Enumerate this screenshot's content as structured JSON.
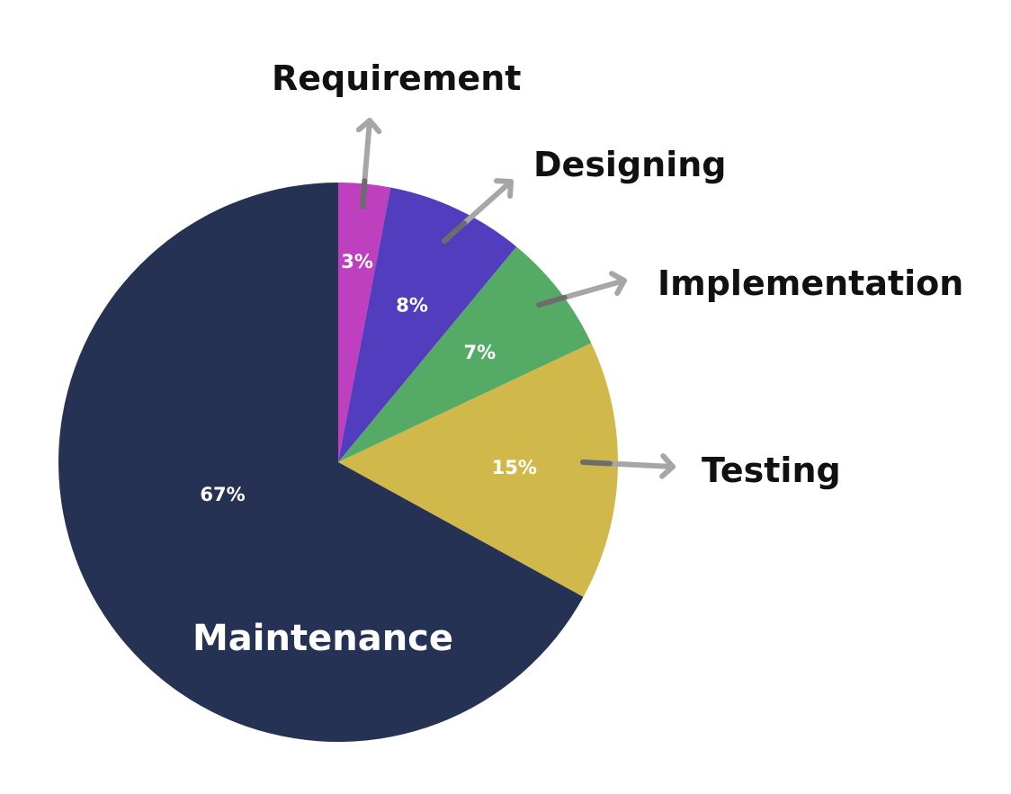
{
  "chart_data": {
    "type": "pie",
    "title": "",
    "slices": [
      {
        "label": "Requirement",
        "value": 3,
        "display": "3%",
        "color": "#bf40bf"
      },
      {
        "label": "Designing",
        "value": 8,
        "display": "8%",
        "color": "#523dbf"
      },
      {
        "label": "Implementation",
        "value": 7,
        "display": "7%",
        "color": "#55aa66"
      },
      {
        "label": "Testing",
        "value": 15,
        "display": "15%",
        "color": "#d0b94a"
      },
      {
        "label": "Maintenance",
        "value": 67,
        "display": "67%",
        "color": "#263254"
      }
    ],
    "start_angle": "12 o'clock",
    "direction": "clockwise",
    "arrow_color": "#a6a6a6"
  }
}
